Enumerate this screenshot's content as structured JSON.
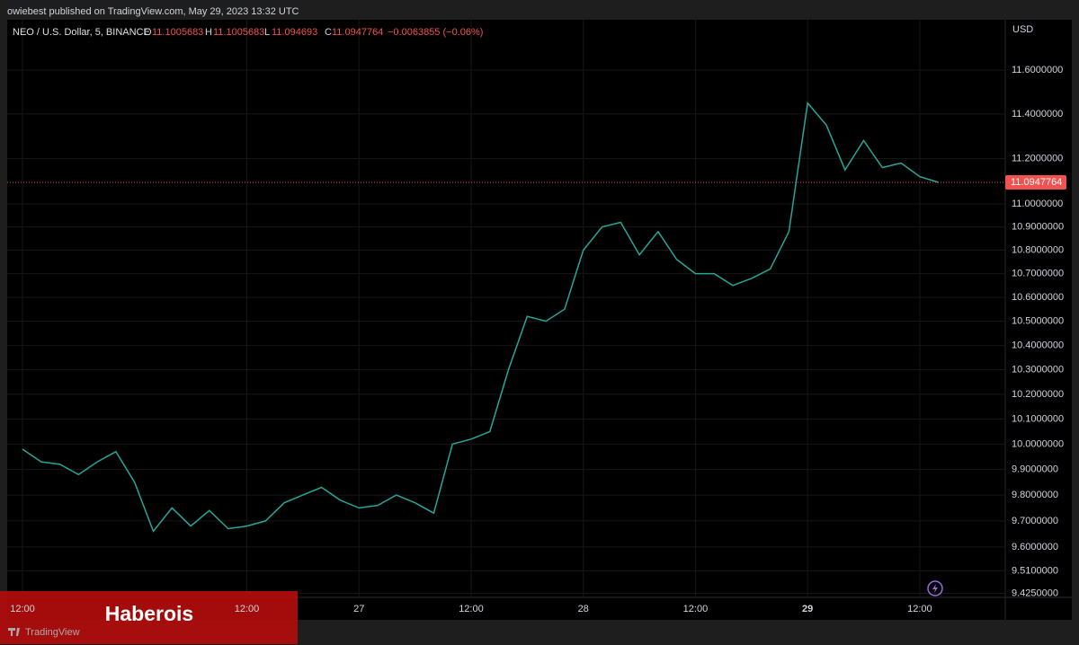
{
  "header": {
    "byline": "owiebest published on TradingView.com, May 29, 2023 13:32 UTC"
  },
  "chart_data": {
    "type": "line",
    "symbol": "NEO / U.S. Dollar, 5, BINANCE",
    "ohlc": [
      {
        "label": "O",
        "value": 11.1005683
      },
      {
        "label": "H",
        "value": 11.1005683
      },
      {
        "label": "L",
        "value": 11.094693
      },
      {
        "label": "C",
        "value": 11.0947764
      }
    ],
    "change": "−0.0063855 (−0.06%)",
    "currency": "USD",
    "categories": [
      "12:00",
      null,
      null,
      null,
      null,
      null,
      null,
      null,
      null,
      null,
      null,
      null,
      "12:00",
      null,
      null,
      null,
      null,
      null,
      "27",
      null,
      null,
      null,
      null,
      null,
      "12:00",
      null,
      null,
      null,
      null,
      null,
      "28",
      null,
      null,
      null,
      null,
      null,
      "12:00",
      null,
      null,
      null,
      null,
      null,
      "29",
      null,
      null,
      null,
      null,
      null,
      "12:00",
      null
    ],
    "color": "#26a69a",
    "values": [
      9.98,
      9.93,
      9.92,
      9.88,
      9.93,
      9.97,
      9.85,
      9.66,
      9.75,
      9.68,
      9.74,
      9.67,
      9.68,
      9.7,
      9.77,
      9.8,
      9.83,
      9.78,
      9.75,
      9.76,
      9.8,
      9.77,
      9.73,
      10.0,
      10.02,
      10.05,
      10.3,
      10.52,
      10.5,
      10.55,
      10.8,
      10.9,
      10.92,
      10.78,
      10.88,
      10.76,
      10.7,
      10.7,
      10.65,
      10.68,
      10.72,
      10.88,
      11.45,
      11.35,
      11.15,
      11.28,
      11.16,
      11.18,
      11.12,
      11.0947764
    ],
    "log_scale": true,
    "grid": true,
    "ylim": [
      9.41,
      11.83
    ],
    "yticks": [
      {
        "value": 11.6,
        "label": "11.6000000"
      },
      {
        "value": 11.4,
        "label": "11.4000000"
      },
      {
        "value": 11.2,
        "label": "11.2000000"
      },
      {
        "value": 11.0,
        "label": "11.0000000"
      },
      {
        "value": 10.9,
        "label": "10.9000000"
      },
      {
        "value": 10.8,
        "label": "10.8000000"
      },
      {
        "value": 10.7,
        "label": "10.7000000"
      },
      {
        "value": 10.6,
        "label": "10.6000000"
      },
      {
        "value": 10.5,
        "label": "10.5000000"
      },
      {
        "value": 10.4,
        "label": "10.4000000"
      },
      {
        "value": 10.3,
        "label": "10.3000000"
      },
      {
        "value": 10.2,
        "label": "10.2000000"
      },
      {
        "value": 10.1,
        "label": "10.1000000"
      },
      {
        "value": 10.0,
        "label": "10.0000000"
      },
      {
        "value": 9.9,
        "label": "9.9000000"
      },
      {
        "value": 9.8,
        "label": "9.8000000"
      },
      {
        "value": 9.7,
        "label": "9.7000000"
      },
      {
        "value": 9.6,
        "label": "9.6000000"
      },
      {
        "value": 9.51,
        "label": "9.5100000"
      },
      {
        "value": 9.425,
        "label": "9.4250000"
      }
    ]
  },
  "banner": {
    "text": "Haberois"
  },
  "footer": {
    "brand": "TradingView"
  }
}
